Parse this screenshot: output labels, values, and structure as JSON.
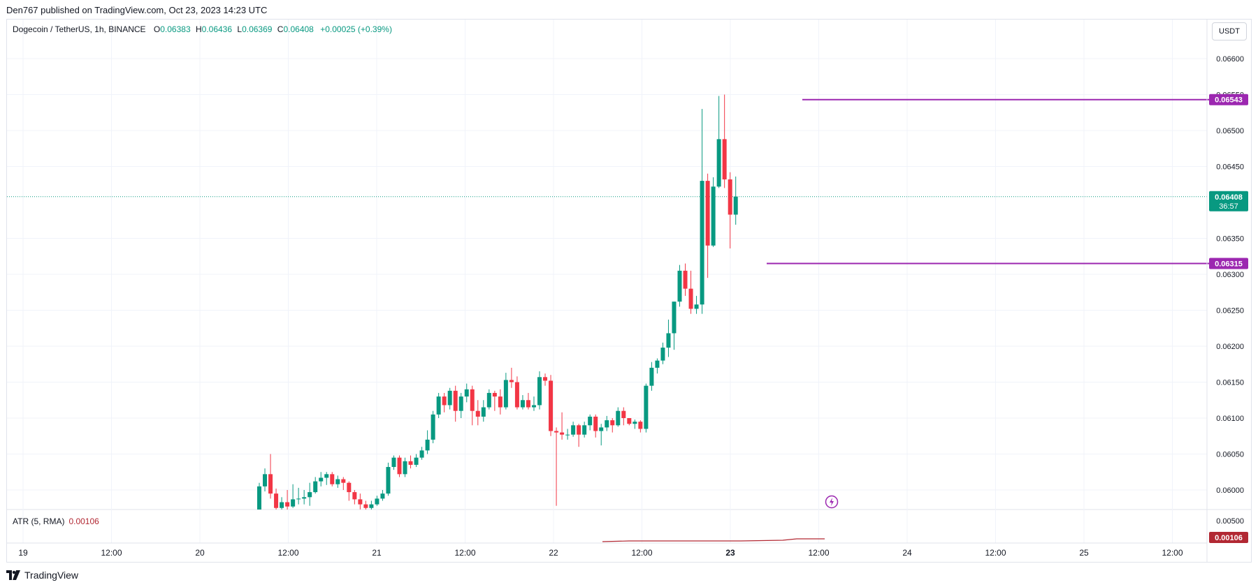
{
  "header": {
    "published": "Den767 published on TradingView.com, Oct 23, 2023 14:23 UTC"
  },
  "legend": {
    "symbol": "Dogecoin / TetherUS, 1h, BINANCE",
    "o_label": "O",
    "o": "0.06383",
    "h_label": "H",
    "h": "0.06436",
    "l_label": "L",
    "l": "0.06369",
    "c_label": "C",
    "c": "0.06408",
    "change": "+0.00025 (+0.39%)"
  },
  "currency_button": "USDT",
  "atr_legend": {
    "label": "ATR (5, RMA)",
    "value": "0.00106"
  },
  "branding": "TradingView",
  "colors": {
    "up": "#089981",
    "down": "#f23645",
    "level": "#9c27b0",
    "atr": "#b22833",
    "grid": "#f0f3fa"
  },
  "chart_data": {
    "type": "candlestick",
    "title": "Dogecoin / TetherUS, 1h, BINANCE",
    "x_axis": {
      "ticks": [
        "19",
        "12:00",
        "20",
        "12:00",
        "21",
        "12:00",
        "22",
        "12:00",
        "23",
        "12:00",
        "24",
        "12:00",
        "25",
        "12:00"
      ],
      "bold_tick": "23"
    },
    "y_axis": {
      "ticks": [
        "0.06600",
        "0.06550",
        "0.06500",
        "0.06450",
        "0.06350",
        "0.06300",
        "0.06250",
        "0.06200",
        "0.06150",
        "0.06100",
        "0.06050",
        "0.06000"
      ],
      "ylim": [
        0.05972,
        0.0662
      ]
    },
    "last_price": {
      "value": "0.06408",
      "countdown": "36:57"
    },
    "levels": [
      {
        "value": 0.06543,
        "label": "0.06543"
      },
      {
        "value": 0.06315,
        "label": "0.06315"
      }
    ],
    "candles": [
      [
        0.0597,
        0.06005,
        0.0597,
        0.0601
      ],
      [
        0.06005,
        0.06022,
        0.05998,
        0.0603
      ],
      [
        0.06022,
        0.05995,
        0.05988,
        0.0605
      ],
      [
        0.05995,
        0.05975,
        0.05965,
        0.06002
      ],
      [
        0.05975,
        0.05983,
        0.0597,
        0.0599
      ],
      [
        0.05983,
        0.05977,
        0.0597,
        0.06
      ],
      [
        0.05977,
        0.05987,
        0.05975,
        0.06008
      ],
      [
        0.05987,
        0.05988,
        0.0598,
        0.06003
      ],
      [
        0.05988,
        0.0599,
        0.0598,
        0.06
      ],
      [
        0.0599,
        0.05997,
        0.05978,
        0.0601
      ],
      [
        0.05997,
        0.06012,
        0.05995,
        0.06018
      ],
      [
        0.06012,
        0.06017,
        0.06005,
        0.06025
      ],
      [
        0.06017,
        0.06022,
        0.06007,
        0.06025
      ],
      [
        0.06022,
        0.06008,
        0.06005,
        0.06025
      ],
      [
        0.06008,
        0.06015,
        0.06003,
        0.0602
      ],
      [
        0.06015,
        0.0601,
        0.06,
        0.06018
      ],
      [
        0.0601,
        0.05997,
        0.05985,
        0.06012
      ],
      [
        0.05997,
        0.05987,
        0.0598,
        0.06
      ],
      [
        0.05987,
        0.0598,
        0.05973,
        0.05995
      ],
      [
        0.0598,
        0.05975,
        0.0597,
        0.05985
      ],
      [
        0.05975,
        0.0598,
        0.05972,
        0.05985
      ],
      [
        0.0598,
        0.05988,
        0.05978,
        0.05992
      ],
      [
        0.05988,
        0.05995,
        0.05985,
        0.06
      ],
      [
        0.05995,
        0.06032,
        0.05992,
        0.06038
      ],
      [
        0.06032,
        0.06045,
        0.06028,
        0.06048
      ],
      [
        0.06045,
        0.06022,
        0.06018,
        0.06048
      ],
      [
        0.06022,
        0.0604,
        0.06018,
        0.06045
      ],
      [
        0.0604,
        0.06035,
        0.0603,
        0.06048
      ],
      [
        0.06035,
        0.06045,
        0.06032,
        0.0605
      ],
      [
        0.06045,
        0.06055,
        0.06042,
        0.0606
      ],
      [
        0.06055,
        0.0607,
        0.0605,
        0.06083
      ],
      [
        0.0607,
        0.06105,
        0.06065,
        0.0611
      ],
      [
        0.06105,
        0.0613,
        0.061,
        0.06135
      ],
      [
        0.0613,
        0.06118,
        0.06108,
        0.06135
      ],
      [
        0.06118,
        0.06138,
        0.06112,
        0.06142
      ],
      [
        0.06138,
        0.0611,
        0.06095,
        0.06145
      ],
      [
        0.0611,
        0.0613,
        0.061,
        0.06135
      ],
      [
        0.0613,
        0.0614,
        0.06122,
        0.06148
      ],
      [
        0.0614,
        0.0611,
        0.0609,
        0.06145
      ],
      [
        0.0611,
        0.06102,
        0.0609,
        0.06125
      ],
      [
        0.06102,
        0.06115,
        0.06095,
        0.06125
      ],
      [
        0.06115,
        0.06135,
        0.06112,
        0.0614
      ],
      [
        0.06135,
        0.0613,
        0.0611,
        0.06138
      ],
      [
        0.0613,
        0.06115,
        0.06105,
        0.0614
      ],
      [
        0.06115,
        0.06153,
        0.06112,
        0.06163
      ],
      [
        0.06153,
        0.0615,
        0.06142,
        0.0617
      ],
      [
        0.0615,
        0.06115,
        0.06112,
        0.06158
      ],
      [
        0.06115,
        0.06125,
        0.06112,
        0.06132
      ],
      [
        0.06125,
        0.06115,
        0.06112,
        0.06135
      ],
      [
        0.06115,
        0.06118,
        0.0611,
        0.0613
      ],
      [
        0.06118,
        0.06157,
        0.06112,
        0.06165
      ],
      [
        0.06157,
        0.06152,
        0.06145,
        0.06162
      ],
      [
        0.06152,
        0.06082,
        0.06075,
        0.0616
      ],
      [
        0.06082,
        0.0608,
        0.05978,
        0.06087
      ],
      [
        0.0608,
        0.06077,
        0.0607,
        0.06108
      ],
      [
        0.06077,
        0.06077,
        0.0607,
        0.06085
      ],
      [
        0.06077,
        0.0609,
        0.06074,
        0.06095
      ],
      [
        0.0609,
        0.06077,
        0.0606,
        0.06092
      ],
      [
        0.06077,
        0.0609,
        0.06073,
        0.06095
      ],
      [
        0.0609,
        0.06102,
        0.06083,
        0.06105
      ],
      [
        0.06102,
        0.06082,
        0.06073,
        0.06105
      ],
      [
        0.06082,
        0.06087,
        0.06062,
        0.06092
      ],
      [
        0.06087,
        0.06097,
        0.06082,
        0.06103
      ],
      [
        0.06097,
        0.0609,
        0.0608,
        0.061
      ],
      [
        0.0609,
        0.0611,
        0.06088,
        0.06115
      ],
      [
        0.0611,
        0.061,
        0.0609,
        0.06115
      ],
      [
        0.061,
        0.06092,
        0.0609,
        0.06095
      ],
      [
        0.06092,
        0.06095,
        0.06085,
        0.06098
      ],
      [
        0.06095,
        0.06085,
        0.0608,
        0.06097
      ],
      [
        0.06085,
        0.06145,
        0.0608,
        0.06148
      ],
      [
        0.06145,
        0.0617,
        0.06138,
        0.06178
      ],
      [
        0.0617,
        0.0618,
        0.06162,
        0.06183
      ],
      [
        0.0618,
        0.06198,
        0.06175,
        0.06205
      ],
      [
        0.06198,
        0.06218,
        0.06185,
        0.06237
      ],
      [
        0.06218,
        0.06262,
        0.06195,
        0.06262
      ],
      [
        0.06262,
        0.06305,
        0.06255,
        0.06313
      ],
      [
        0.06305,
        0.0628,
        0.0627,
        0.06315
      ],
      [
        0.0628,
        0.06252,
        0.06245,
        0.06305
      ],
      [
        0.06252,
        0.06258,
        0.06245,
        0.0627
      ],
      [
        0.06258,
        0.0643,
        0.06245,
        0.0653
      ],
      [
        0.0643,
        0.0634,
        0.06295,
        0.0644
      ],
      [
        0.0634,
        0.06422,
        0.06338,
        0.06435
      ],
      [
        0.06422,
        0.06488,
        0.0642,
        0.06548
      ],
      [
        0.06488,
        0.06432,
        0.0642,
        0.0655
      ],
      [
        0.06432,
        0.06383,
        0.06336,
        0.06442
      ],
      [
        0.06383,
        0.06408,
        0.06369,
        0.06436
      ]
    ]
  }
}
